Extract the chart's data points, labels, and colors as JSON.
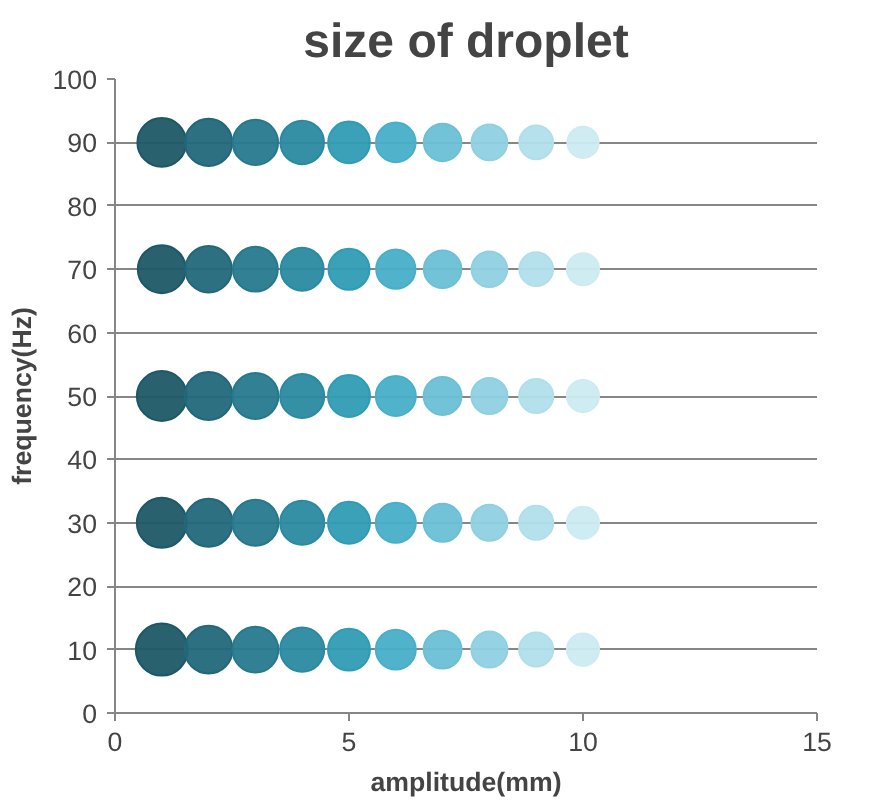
{
  "chart_data": {
    "type": "bubble",
    "title": "size of droplet",
    "xlabel": "amplitude(mm)",
    "ylabel": "frequency(Hz)",
    "xlim": [
      0,
      15
    ],
    "xticks": [
      0,
      5,
      10,
      15
    ],
    "ylim": [
      0,
      100
    ],
    "yticks": [
      0,
      10,
      20,
      30,
      40,
      50,
      60,
      70,
      80,
      90,
      100
    ],
    "grid": "y",
    "series": [
      {
        "x": [
          1,
          2,
          3,
          4,
          5,
          6,
          7,
          8,
          9,
          10
        ],
        "values": [
          10,
          10,
          10,
          10,
          10,
          10,
          10,
          10,
          10,
          10
        ],
        "sizes": [
          1,
          0.85,
          0.78,
          0.72,
          0.65,
          0.59,
          0.53,
          0.48,
          0.43,
          0.38
        ],
        "colors": [
          "#1d5866",
          "#22687a",
          "#26798d",
          "#2a8aa1",
          "#2f9cb5",
          "#48afc8",
          "#6cc0d6",
          "#8fd0e1",
          "#b0dfeb",
          "#cdebf2"
        ]
      },
      {
        "x": [
          1,
          2,
          3,
          4,
          5,
          6,
          7,
          8,
          9,
          10
        ],
        "values": [
          30,
          30,
          30,
          30,
          30,
          30,
          30,
          30,
          30,
          30
        ],
        "sizes": [
          0.92,
          0.85,
          0.78,
          0.72,
          0.65,
          0.59,
          0.53,
          0.48,
          0.43,
          0.38
        ],
        "colors": [
          "#1d5866",
          "#22687a",
          "#26798d",
          "#2a8aa1",
          "#2f9cb5",
          "#48afc8",
          "#6cc0d6",
          "#8fd0e1",
          "#b0dfeb",
          "#cdebf2"
        ]
      },
      {
        "x": [
          1,
          2,
          3,
          4,
          5,
          6,
          7,
          8,
          9,
          10
        ],
        "values": [
          50,
          50,
          50,
          50,
          50,
          50,
          50,
          50,
          50,
          50
        ],
        "sizes": [
          0.92,
          0.85,
          0.78,
          0.72,
          0.65,
          0.59,
          0.53,
          0.48,
          0.43,
          0.38
        ],
        "colors": [
          "#1d5866",
          "#22687a",
          "#26798d",
          "#2a8aa1",
          "#2f9cb5",
          "#48afc8",
          "#6cc0d6",
          "#8fd0e1",
          "#b0dfeb",
          "#cdebf2"
        ]
      },
      {
        "x": [
          1,
          2,
          3,
          4,
          5,
          6,
          7,
          8,
          9,
          10
        ],
        "values": [
          70,
          70,
          70,
          70,
          70,
          70,
          70,
          70,
          70,
          70
        ],
        "sizes": [
          0.85,
          0.8,
          0.74,
          0.68,
          0.62,
          0.57,
          0.52,
          0.47,
          0.42,
          0.38
        ],
        "colors": [
          "#1d5866",
          "#22687a",
          "#26798d",
          "#2a8aa1",
          "#2f9cb5",
          "#48afc8",
          "#6cc0d6",
          "#8fd0e1",
          "#b0dfeb",
          "#cdebf2"
        ]
      },
      {
        "x": [
          1,
          2,
          3,
          4,
          5,
          6,
          7,
          8,
          9,
          10
        ],
        "values": [
          90,
          90,
          90,
          90,
          90,
          90,
          90,
          90,
          90,
          90
        ],
        "sizes": [
          0.88,
          0.82,
          0.76,
          0.7,
          0.64,
          0.58,
          0.52,
          0.47,
          0.42,
          0.36
        ],
        "colors": [
          "#1d5866",
          "#22687a",
          "#26798d",
          "#2a8aa1",
          "#2f9cb5",
          "#48afc8",
          "#6cc0d6",
          "#8fd0e1",
          "#b0dfeb",
          "#cdebf2"
        ]
      }
    ]
  }
}
